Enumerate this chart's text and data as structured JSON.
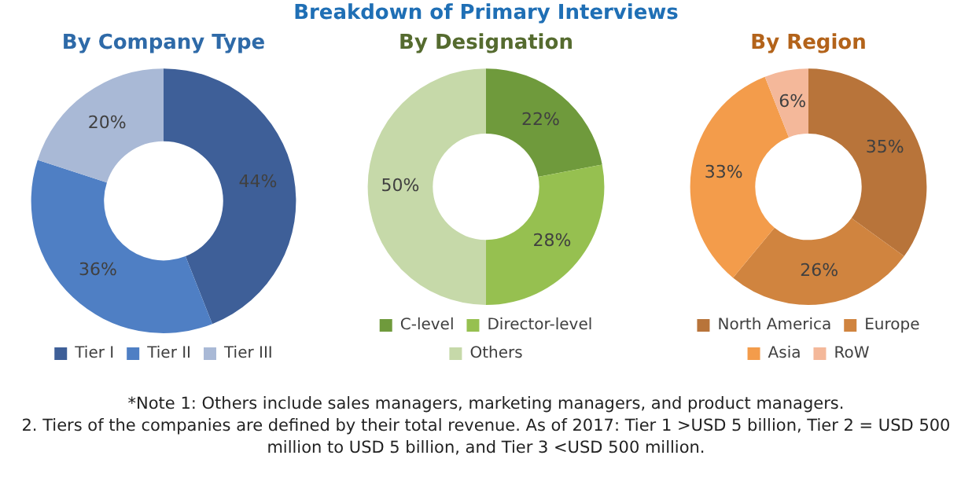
{
  "chart_data": [
    {
      "type": "other",
      "title": "Breakdown of Primary Interviews",
      "annotations": [
        "*Note 1: Others include sales managers, marketing managers, and product managers.",
        "2. Tiers of the companies are defined by their total revenue. As of 2017: Tier 1 >USD 5 billion, Tier 2 = USD 500 million to USD 5 billion, and Tier 3 <USD 500 million."
      ]
    },
    {
      "type": "donut",
      "title": "By Company Type",
      "categories": [
        "Tier I",
        "Tier II",
        "Tier III"
      ],
      "values": [
        44,
        36,
        20
      ],
      "colors": [
        "#3e5f98",
        "#4f7fc4",
        "#a9b9d6"
      ],
      "value_labels": [
        "44%",
        "36%",
        "20%"
      ],
      "legend": "bottom"
    },
    {
      "type": "donut",
      "title": "By Designation",
      "categories": [
        "C-level",
        "Director-level",
        "Others"
      ],
      "values": [
        22,
        28,
        50
      ],
      "colors": [
        "#6f9a3c",
        "#96c050",
        "#c6d9a9"
      ],
      "value_labels": [
        "22%",
        "28%",
        "50%"
      ],
      "legend": "bottom"
    },
    {
      "type": "donut",
      "title": "By Region",
      "categories": [
        "North America",
        "Europe",
        "Asia",
        "RoW"
      ],
      "values": [
        35,
        26,
        33,
        6
      ],
      "colors": [
        "#b8743a",
        "#d0843f",
        "#f39c4b",
        "#f4b89a"
      ],
      "value_labels": [
        "35%",
        "26%",
        "33%",
        "6%"
      ],
      "legend": "bottom"
    }
  ]
}
